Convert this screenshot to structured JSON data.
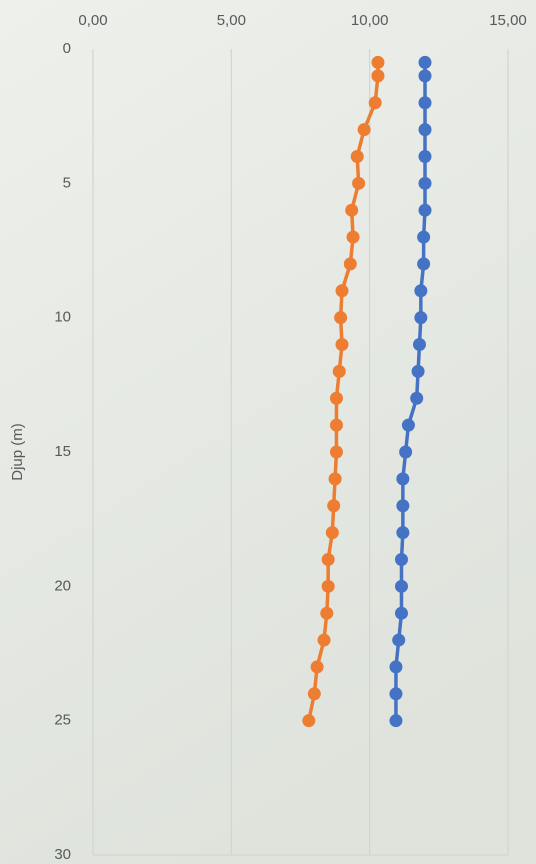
{
  "chart_data": {
    "type": "line",
    "y_label": "Djup (m)",
    "y": [
      0.5,
      1,
      2,
      3,
      4,
      5,
      6,
      7,
      8,
      9,
      10,
      11,
      12,
      13,
      14,
      15,
      16,
      17,
      18,
      19,
      20,
      21,
      22,
      23,
      24,
      25
    ],
    "series": [
      {
        "color": "#4472c4",
        "values": [
          12.0,
          12.0,
          12.0,
          12.0,
          12.0,
          12.0,
          12.0,
          11.95,
          11.95,
          11.85,
          11.85,
          11.8,
          11.75,
          11.7,
          11.4,
          11.3,
          11.2,
          11.2,
          11.2,
          11.15,
          11.15,
          11.15,
          11.05,
          10.95,
          10.95,
          10.95
        ]
      },
      {
        "color": "#ed7d31",
        "values": [
          10.3,
          10.3,
          10.2,
          9.8,
          9.55,
          9.6,
          9.35,
          9.4,
          9.3,
          9.0,
          8.95,
          9.0,
          8.9,
          8.8,
          8.8,
          8.8,
          8.75,
          8.7,
          8.65,
          8.5,
          8.5,
          8.45,
          8.35,
          8.1,
          8.0,
          7.8
        ]
      }
    ],
    "xlim": [
      0,
      15
    ],
    "xticks": [
      {
        "value": 0,
        "label": "0,00"
      },
      {
        "value": 5,
        "label": "5,00"
      },
      {
        "value": 10,
        "label": "10,00"
      },
      {
        "value": 15,
        "label": "15,00"
      }
    ],
    "ylim": [
      0,
      30
    ],
    "yticks": [
      0,
      5,
      10,
      15,
      20,
      25,
      30
    ],
    "y_inverted": true,
    "x_axis_position": "top",
    "grid": "x"
  }
}
